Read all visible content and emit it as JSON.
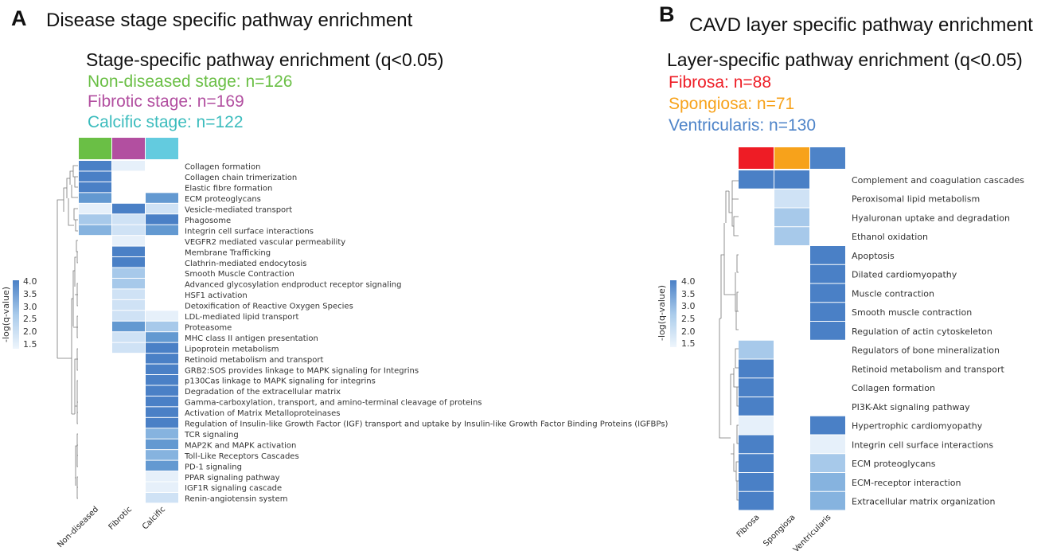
{
  "palette": {
    "ramp": [
      "#e6f0fa",
      "#cfe2f5",
      "#a7c9ea",
      "#86b3df",
      "#6399d1",
      "#4a80c6"
    ],
    "non_diseased": "#6abf45",
    "fibrotic": "#b24fa0",
    "calcific": "#63cbdf",
    "fibrosa": "#ee1c25",
    "spongiosa": "#f7a21b",
    "ventricularis": "#4d83c8"
  },
  "panel_a": {
    "letter": "A",
    "title": "Disease stage specific pathway enrichment",
    "subtitle": "Stage-specific pathway enrichment (q<0.05)",
    "counts": [
      {
        "label": "Non-diseased stage: n=126",
        "color": "#6abf45"
      },
      {
        "label": "Fibrotic stage: n=169",
        "color": "#b24fa0"
      },
      {
        "label": "Calcific stage: n=122",
        "color": "#3bbcbd"
      }
    ],
    "colorbar_title": "-log(q-value)",
    "colorbar_ticks": [
      "4.0",
      "3.5",
      "3.0",
      "2.5",
      "2.0",
      "1.5"
    ]
  },
  "panel_b": {
    "letter": "B",
    "title": "CAVD layer specific pathway enrichment",
    "subtitle": "Layer-specific pathway enrichment (q<0.05)",
    "counts": [
      {
        "label": "Fibrosa: n=88",
        "color": "#ee1c25"
      },
      {
        "label": "Spongiosa: n=71",
        "color": "#f7a21b"
      },
      {
        "label": "Ventricularis: n=130",
        "color": "#4d83c8"
      }
    ],
    "colorbar_title": "-log(q-value)",
    "colorbar_ticks": [
      "4.0",
      "3.5",
      "3.0",
      "2.5",
      "2.0",
      "1.5"
    ]
  },
  "chart_data": [
    {
      "type": "heatmap",
      "title": "Stage-specific pathway enrichment (q<0.05)",
      "colorbar_label": "-log(q-value)",
      "value_range": [
        1.3,
        4.0
      ],
      "columns": [
        "Non-diseased",
        "Fibrotic",
        "Calcific"
      ],
      "column_colors": [
        "#6abf45",
        "#b24fa0",
        "#63cbdf"
      ],
      "rows": [
        {
          "label": "Collagen formation",
          "values": [
            4.0,
            1.4,
            null
          ]
        },
        {
          "label": "Collagen chain trimerization",
          "values": [
            4.0,
            null,
            null
          ]
        },
        {
          "label": "Elastic fibre formation",
          "values": [
            4.0,
            null,
            null
          ]
        },
        {
          "label": "ECM proteoglycans",
          "values": [
            3.3,
            null,
            3.3
          ]
        },
        {
          "label": "Vesicle-mediated transport",
          "values": [
            1.5,
            4.0,
            2.1
          ]
        },
        {
          "label": "Phagosome",
          "values": [
            2.4,
            1.7,
            4.0
          ]
        },
        {
          "label": "Integrin cell surface interactions",
          "values": [
            3.0,
            2.0,
            3.4
          ]
        },
        {
          "label": "VEGFR2 mediated vascular permeability",
          "values": [
            null,
            1.4,
            null
          ]
        },
        {
          "label": "Membrane Trafficking",
          "values": [
            null,
            4.0,
            null
          ]
        },
        {
          "label": "Clathrin-mediated endocytosis",
          "values": [
            null,
            4.0,
            null
          ]
        },
        {
          "label": "Smooth Muscle Contraction",
          "values": [
            null,
            2.3,
            null
          ]
        },
        {
          "label": "Advanced glycosylation endproduct receptor signaling",
          "values": [
            null,
            2.2,
            null
          ]
        },
        {
          "label": "HSF1 activation",
          "values": [
            null,
            2.0,
            null
          ]
        },
        {
          "label": "Detoxification of Reactive Oxygen Species",
          "values": [
            null,
            1.8,
            null
          ]
        },
        {
          "label": "LDL-mediated lipid transport",
          "values": [
            null,
            1.6,
            1.4
          ]
        },
        {
          "label": "Proteasome",
          "values": [
            null,
            3.2,
            2.2
          ]
        },
        {
          "label": "MHC class II antigen presentation",
          "values": [
            null,
            1.9,
            3.3
          ]
        },
        {
          "label": "Lipoprotein metabolism",
          "values": [
            null,
            1.7,
            4.0
          ]
        },
        {
          "label": "Retinoid metabolism and transport",
          "values": [
            null,
            null,
            4.0
          ]
        },
        {
          "label": "GRB2:SOS provides linkage to MAPK signaling for Integrins",
          "values": [
            null,
            null,
            4.0
          ]
        },
        {
          "label": "p130Cas linkage to MAPK signaling for integrins",
          "values": [
            null,
            null,
            4.0
          ]
        },
        {
          "label": "Degradation of the extracellular matrix",
          "values": [
            null,
            null,
            4.0
          ]
        },
        {
          "label": "Gamma-carboxylation, transport, and amino-terminal cleavage of proteins",
          "values": [
            null,
            null,
            4.0
          ]
        },
        {
          "label": "Activation of Matrix Metalloproteinases",
          "values": [
            null,
            null,
            4.0
          ]
        },
        {
          "label": "Regulation of Insulin-like Growth Factor (IGF) transport and uptake by Insulin-like Growth Factor Binding Proteins (IGFBPs)",
          "values": [
            null,
            null,
            4.0
          ]
        },
        {
          "label": "TCR signaling",
          "values": [
            null,
            null,
            3.0
          ]
        },
        {
          "label": "MAP2K and MAPK activation",
          "values": [
            null,
            null,
            3.4
          ]
        },
        {
          "label": "Toll-Like Receptors Cascades",
          "values": [
            null,
            null,
            2.8
          ]
        },
        {
          "label": "PD-1 signaling",
          "values": [
            null,
            null,
            3.2
          ]
        },
        {
          "label": "PPAR signaling pathway",
          "values": [
            null,
            null,
            1.4
          ]
        },
        {
          "label": "IGF1R signaling cascade",
          "values": [
            null,
            null,
            1.5
          ]
        },
        {
          "label": "Renin-angiotensin system",
          "values": [
            null,
            null,
            1.6
          ]
        }
      ]
    },
    {
      "type": "heatmap",
      "title": "Layer-specific pathway enrichment (q<0.05)",
      "colorbar_label": "-log(q-value)",
      "value_range": [
        1.3,
        4.0
      ],
      "columns": [
        "Fibrosa",
        "Spongiosa",
        "Ventricularis"
      ],
      "column_colors": [
        "#ee1c25",
        "#f7a21b",
        "#4d83c8"
      ],
      "rows": [
        {
          "label": "Complement and coagulation cascades",
          "values": [
            4.0,
            4.0,
            null
          ]
        },
        {
          "label": "Peroxisomal lipid metabolism",
          "values": [
            null,
            1.6,
            null
          ]
        },
        {
          "label": "Hyaluronan uptake and degradation",
          "values": [
            null,
            2.4,
            null
          ]
        },
        {
          "label": "Ethanol oxidation",
          "values": [
            null,
            2.2,
            null
          ]
        },
        {
          "label": "Apoptosis",
          "values": [
            null,
            null,
            4.0
          ]
        },
        {
          "label": "Dilated cardiomyopathy",
          "values": [
            null,
            null,
            4.0
          ]
        },
        {
          "label": "Muscle contraction",
          "values": [
            null,
            null,
            4.0
          ]
        },
        {
          "label": "Smooth muscle contraction",
          "values": [
            null,
            null,
            4.0
          ]
        },
        {
          "label": "Regulation of actin cytoskeleton",
          "values": [
            null,
            null,
            4.0
          ]
        },
        {
          "label": "Regulators of bone mineralization",
          "values": [
            2.2,
            null,
            null
          ]
        },
        {
          "label": "Retinoid metabolism and transport",
          "values": [
            4.0,
            null,
            null
          ]
        },
        {
          "label": "Collagen formation",
          "values": [
            4.0,
            null,
            null
          ]
        },
        {
          "label": "PI3K-Akt signaling pathway",
          "values": [
            4.0,
            null,
            null
          ]
        },
        {
          "label": "Hypertrophic cardiomyopathy",
          "values": [
            1.5,
            null,
            4.0
          ]
        },
        {
          "label": "Integrin cell surface interactions",
          "values": [
            4.0,
            null,
            1.5
          ]
        },
        {
          "label": "ECM proteoglycans",
          "values": [
            4.0,
            null,
            2.3
          ]
        },
        {
          "label": "ECM-receptor interaction",
          "values": [
            4.0,
            null,
            2.8
          ]
        },
        {
          "label": "Extracellular matrix organization",
          "values": [
            4.0,
            null,
            3.0
          ]
        }
      ]
    }
  ]
}
